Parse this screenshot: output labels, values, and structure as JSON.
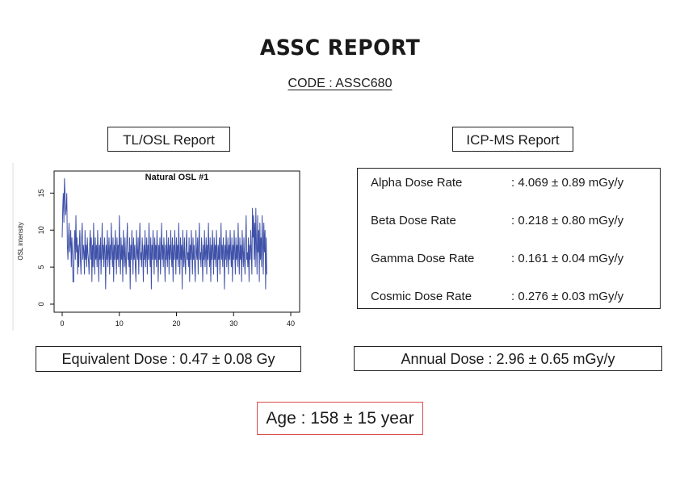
{
  "report": {
    "title": "ASSC REPORT",
    "code": "CODE : ASSC680"
  },
  "tl_osl": {
    "label": "TL/OSL Report",
    "equivalent_dose": "Equivalent Dose : 0.47 ± 0.08 Gy"
  },
  "icp_ms": {
    "label": "ICP-MS Report",
    "rows": [
      {
        "label": "Alpha Dose Rate",
        "value": ": 4.069 ± 0.89 mGy/y"
      },
      {
        "label": "Beta Dose Rate",
        "value": ": 0.218 ± 0.80 mGy/y"
      },
      {
        "label": "Gamma Dose Rate",
        "value": ": 0.161 ± 0.04 mGy/y"
      },
      {
        "label": "Cosmic Dose Rate",
        "value": ": 0.276 ± 0.03 mGy/y"
      }
    ],
    "annual_dose": "Annual Dose : 2.96 ± 0.65 mGy/y"
  },
  "age": "Age : 158 ± 15 year",
  "colors": {
    "series": "#3f51a8",
    "age_border": "#d94a4a"
  },
  "chart_data": {
    "type": "line",
    "title": "Natural OSL #1",
    "xlabel": "",
    "ylabel": "OSL intensity",
    "xlim": [
      0,
      40
    ],
    "ylim": [
      0,
      17
    ],
    "xticks": [
      "0",
      "10",
      "20",
      "30",
      "40"
    ],
    "yticks": [
      "0",
      "5",
      "10",
      "15"
    ],
    "series": [
      {
        "x_start": 0,
        "x_step": 0.1,
        "values": [
          9,
          13,
          15,
          11,
          17,
          15,
          12,
          13,
          15,
          8,
          6,
          9,
          11,
          7,
          8,
          10,
          5,
          9,
          7,
          3,
          3,
          8,
          10,
          6,
          12,
          7,
          9,
          4,
          8,
          5,
          8,
          10,
          6,
          4,
          9,
          11,
          6,
          8,
          7,
          4,
          10,
          6,
          8,
          5,
          9,
          7,
          6,
          4,
          8,
          10,
          6,
          9,
          3,
          8,
          5,
          11,
          7,
          4,
          9,
          6,
          8,
          5,
          10,
          7,
          3,
          8,
          6,
          9,
          4,
          7,
          11,
          6,
          8,
          5,
          9,
          7,
          2,
          8,
          6,
          10,
          5,
          7,
          9,
          4,
          8,
          6,
          11,
          7,
          5,
          9,
          3,
          8,
          6,
          10,
          7,
          4,
          9,
          6,
          8,
          5,
          12,
          7,
          4,
          9,
          6,
          8,
          3,
          10,
          7,
          5,
          9,
          6,
          4,
          8,
          11,
          6,
          7,
          5,
          9,
          2,
          8,
          6,
          10,
          7,
          4,
          9,
          6,
          8,
          5,
          3,
          10,
          7,
          6,
          9,
          4,
          8,
          11,
          6,
          7,
          5,
          9,
          7,
          3,
          8,
          6,
          10,
          5,
          7,
          9,
          4,
          8,
          6,
          11,
          7,
          5,
          9,
          2,
          8,
          6,
          10,
          7,
          4,
          9,
          6,
          8,
          5,
          10,
          7,
          3,
          8,
          6,
          9,
          4,
          7,
          11,
          6,
          8,
          5,
          9,
          7,
          3,
          8,
          6,
          10,
          5,
          7,
          9,
          4,
          8,
          6,
          10,
          7,
          5,
          9,
          3,
          8,
          6,
          10,
          7,
          4,
          9,
          6,
          8,
          5,
          11,
          7,
          4,
          9,
          6,
          8,
          2,
          10,
          7,
          5,
          9,
          6,
          4,
          8,
          10,
          6,
          7,
          5,
          9,
          3,
          8,
          6,
          10,
          7,
          4,
          9,
          6,
          8,
          5,
          3,
          10,
          7,
          6,
          9,
          4,
          8,
          11,
          6,
          7,
          5,
          9,
          7,
          3,
          8,
          6,
          10,
          5,
          7,
          9,
          4,
          8,
          6,
          11,
          7,
          5,
          9,
          3,
          8,
          6,
          10,
          7,
          4,
          9,
          6,
          8,
          5,
          10,
          7,
          3,
          8,
          6,
          9,
          4,
          7,
          11,
          6,
          8,
          5,
          9,
          7,
          2,
          8,
          6,
          10,
          5,
          7,
          9,
          4,
          8,
          6,
          10,
          7,
          5,
          9,
          3,
          8,
          6,
          10,
          7,
          4,
          9,
          6,
          8,
          5,
          11,
          7,
          4,
          9,
          6,
          8,
          3,
          10,
          7,
          5,
          9,
          6,
          4,
          8,
          12,
          6,
          7,
          5,
          9,
          3,
          8,
          6,
          10,
          7,
          4,
          13,
          9,
          12,
          6,
          11,
          5,
          13,
          8,
          4,
          12,
          7,
          10,
          3,
          11,
          6,
          9,
          5,
          12,
          8,
          4,
          11,
          7,
          10,
          2,
          9,
          4
        ]
      }
    ]
  }
}
